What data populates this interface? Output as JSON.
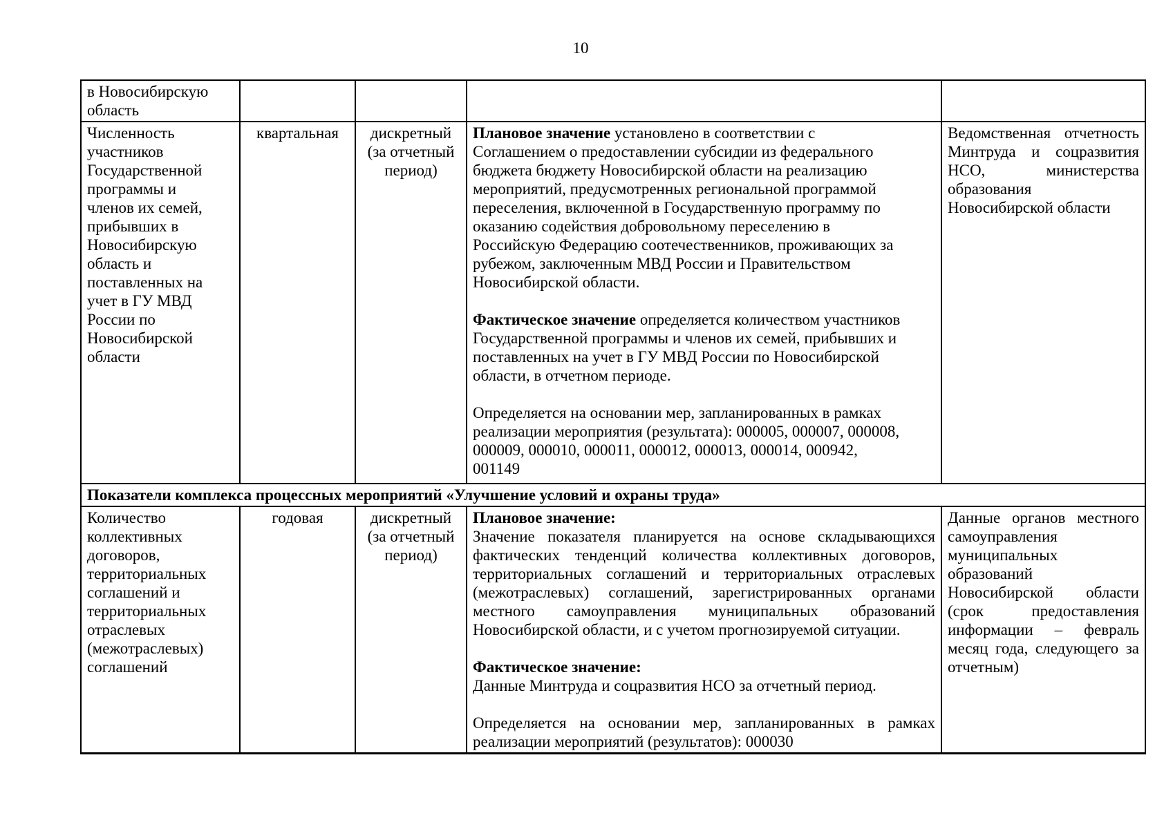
{
  "colors": {
    "text": "#000000",
    "border": "#000000",
    "background": "#ffffff"
  },
  "page": {
    "number": "10"
  },
  "table": {
    "section_header": "Показатели комплекса процессных мероприятий «Улучшение условий и охраны труда»",
    "row_continuation": {
      "indicator_lines": [
        "в Новосибирскую",
        "область"
      ],
      "frequency_lines": [],
      "period_type_lines": [],
      "description_lines": [],
      "source_lines": []
    },
    "row_migration": {
      "indicator_lines": [
        "Численность",
        "участников",
        "Государственной",
        "программы и",
        "членов их семей,",
        "прибывших в",
        "Новосибирскую",
        "область и",
        "поставленных на",
        "учет в ГУ МВД",
        "России по",
        "Новосибирской",
        "области"
      ],
      "frequency_lines": [
        "квартальная"
      ],
      "period_type_lines": [
        "дискретный",
        "(за отчетный",
        "период)"
      ],
      "description_lines": [
        {
          "b": "Плановое значение",
          "t": " установлено в соответствии с"
        },
        "Соглашением о предоставлении субсидии из федерального",
        "бюджета бюджету Новосибирской области на реализацию",
        "мероприятий, предусмотренных региональной программой",
        "переселения, включенной в Государственную программу по",
        "оказанию содействия добровольному переселению в",
        "Российскую Федерацию соотечественников, проживающих за",
        "рубежом, заключенным МВД России и Правительством",
        "Новосибирской области.",
        "",
        {
          "b": "Фактическое значение",
          "t": " определяется количеством участников"
        },
        "Государственной программы и членов их семей, прибывших и",
        "поставленных на учет в ГУ МВД России по Новосибирской",
        "области, в отчетном периоде.",
        "",
        "Определяется на основании мер, запланированных в рамках",
        "реализации мероприятия (результата): 000005, 000007, 000008,",
        "000009, 000010, 000011, 000012, 000013, 000014, 000942,",
        "001149"
      ],
      "source_lines": [
        "Ведомственная отчетность",
        "Минтруда и соцразвития",
        "НСО, министерства",
        "образования",
        {
          "t": "Новосибирской области",
          "last": true
        }
      ]
    },
    "row_collective": {
      "indicator_lines": [
        "Количество",
        "коллективных",
        "договоров,",
        "территориальных",
        "соглашений и",
        "территориальных",
        "отраслевых",
        "(межотраслевых)",
        "соглашений"
      ],
      "frequency_lines": [
        "годовая"
      ],
      "period_type_lines": [
        "дискретный",
        "(за отчетный",
        "период)"
      ],
      "description_lines": [
        {
          "b": "Плановое значение:",
          "t": "",
          "last": true
        },
        "Значение показателя планируется на основе складывающихся",
        "фактических тенденций количества коллективных договоров,",
        "территориальных соглашений и территориальных отраслевых",
        "(межотраслевых) соглашений, зарегистрированных органами",
        "местного самоуправления муниципальных образований",
        {
          "t": "Новосибирской области, и с учетом прогнозируемой ситуации.",
          "last": true
        },
        "",
        {
          "b": "Фактическое значение:",
          "t": "",
          "last": true
        },
        {
          "t": "Данные Минтруда и соцразвития НСО за отчетный период.",
          "last": true
        },
        "",
        "Определяется на основании мер, запланированных в рамках",
        {
          "t": "реализации мероприятий (результатов): 000030",
          "last": true
        }
      ],
      "source_lines": [
        "Данные органов местного",
        "самоуправления",
        "муниципальных",
        "образований",
        "Новосибирской области",
        "(срок предоставления",
        "информации – февраль",
        "месяц года, следующего за",
        {
          "t": "отчетным)",
          "last": true
        }
      ]
    }
  }
}
